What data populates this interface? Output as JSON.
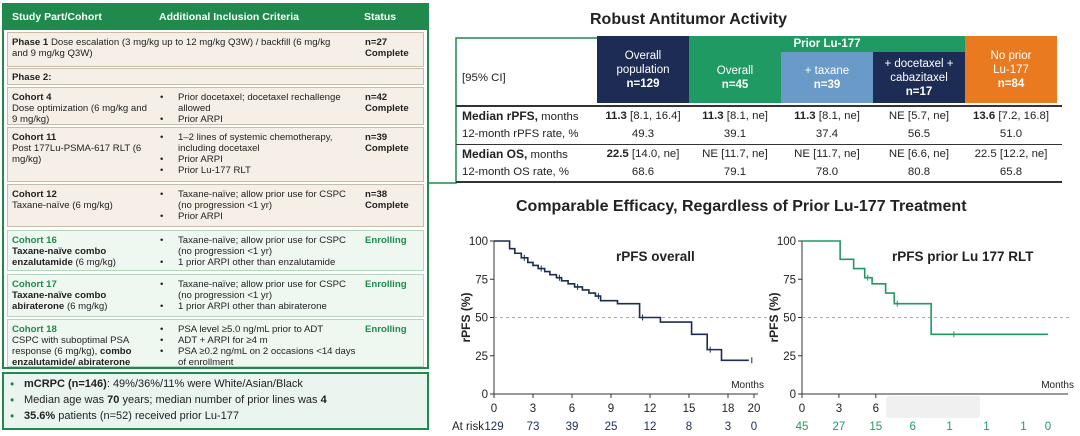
{
  "cohort_table": {
    "headers": {
      "part": "Study Part/Cohort",
      "criteria": "Additional Inclusion Criteria",
      "status": "Status"
    },
    "phase1": {
      "title": "Phase 1",
      "desc": "Dose escalation (3 mg/kg up to 12 mg/kg Q3W) / backfill (6 mg/kg and 9 mg/kg Q3W)",
      "status_n": "n=27",
      "status": "Complete"
    },
    "phase2_label": "Phase 2:",
    "cohorts": [
      {
        "name": "Cohort 4",
        "desc": "Dose optimization (6 mg/kg and 9 mg/kg)",
        "criteria": [
          "Prior docetaxel; docetaxel rechallenge allowed",
          "Prior ARPI"
        ],
        "status_n": "n=42",
        "status": "Complete"
      },
      {
        "name": "Cohort 11",
        "desc": "Post 177Lu-PSMA-617 RLT (6 mg/kg)",
        "criteria": [
          "1–2 lines of systemic chemotherapy, including docetaxel",
          "Prior ARPI",
          "Prior Lu-177 RLT"
        ],
        "status_n": "n=39",
        "status": "Complete"
      },
      {
        "name": "Cohort 12",
        "desc": "Taxane-naïve (6 mg/kg)",
        "criteria": [
          "Taxane-naïve; allow prior use for CSPC (no progression <1 yr)",
          "Prior ARPI"
        ],
        "status_n": "n=38",
        "status": "Complete"
      },
      {
        "name": "Cohort 16",
        "desc_bold": "Taxane-naïve combo enzalutamide",
        "desc": "(6 mg/kg)",
        "criteria": [
          "Taxane-naïve; allow prior use for CSPC (no progression <1 yr)",
          "1 prior ARPI other than enzalutamide"
        ],
        "status": "Enrolling"
      },
      {
        "name": "Cohort 17",
        "desc_bold": "Taxane-naïve combo abiraterone",
        "desc": "(6 mg/kg)",
        "criteria": [
          "Taxane-naïve; allow prior use for CSPC (no progression <1 yr)",
          "1 prior ARPI other than abiraterone"
        ],
        "status": "Enrolling"
      },
      {
        "name": "Cohort 18",
        "desc": "CSPC with suboptimal PSA response (6 mg/kg),",
        "desc_bold": "combo enzalutamide/ abiraterone",
        "criteria": [
          "PSA level ≥5.0 ng/mL prior to ADT",
          "ADT + ARPI for ≥4 m",
          "PSA ≥0.2 ng/mL on 2 occasions <14 days of enrollment"
        ],
        "status": "Enrolling"
      }
    ]
  },
  "summary": {
    "line1_bold": "mCRPC (n=146)",
    "line1": ": 49%/36%/11% were White/Asian/Black",
    "line2_pre": "Median age was ",
    "line2_age": "70",
    "line2_mid": " years; median number of prior lines was ",
    "line2_lines": "4",
    "line3_bold": "35.6%",
    "line3": " patients (n=52) received prior Lu-177"
  },
  "efficacy_table": {
    "title": "Robust Antitumor Activity",
    "ci_label": "[95% CI]",
    "group_header": "Prior Lu-177",
    "columns": [
      {
        "label": "Overall population",
        "n": "n=129",
        "color": "#1c2c55"
      },
      {
        "label": "Overall",
        "n": "n=45",
        "color": "#1f9a63"
      },
      {
        "label": "+ taxane",
        "n": "n=39",
        "color": "#6a9ac8"
      },
      {
        "label": "+ docetaxel + cabazitaxel",
        "n": "n=17",
        "color": "#1c2c55"
      },
      {
        "label": "No prior Lu-177",
        "n": "n=84",
        "color": "#ea7a1f"
      }
    ],
    "rows": [
      {
        "label_bold": "Median rPFS,",
        "label": " months",
        "cells": [
          {
            "bold": "11.3",
            "rest": " [8.1, 16.4]"
          },
          {
            "bold": "11.3",
            "rest": " [8.1, ne]"
          },
          {
            "bold": "11.3",
            "rest": " [8.1, ne]"
          },
          {
            "bold": "",
            "rest": "NE [5.7, ne]"
          },
          {
            "bold": "13.6",
            "rest": " [7.2, 16.8]"
          }
        ]
      },
      {
        "label_bold": "",
        "label": "12-month rPFS rate, %",
        "cells": [
          {
            "bold": "",
            "rest": "49.3"
          },
          {
            "bold": "",
            "rest": "39.1"
          },
          {
            "bold": "",
            "rest": "37.4"
          },
          {
            "bold": "",
            "rest": "56.5"
          },
          {
            "bold": "",
            "rest": "51.0"
          }
        ]
      },
      {
        "label_bold": "Median OS,",
        "label": " months",
        "cells": [
          {
            "bold": "22.5",
            "rest": " [14.0, ne]"
          },
          {
            "bold": "",
            "rest": "NE [11.7, ne]"
          },
          {
            "bold": "",
            "rest": "NE [11.7, ne]"
          },
          {
            "bold": "",
            "rest": "NE [6.6, ne]"
          },
          {
            "bold": "",
            "rest": "22.5 [12.2, ne]"
          }
        ]
      },
      {
        "label_bold": "",
        "label": "12-month OS rate, %",
        "cells": [
          {
            "bold": "",
            "rest": "68.6"
          },
          {
            "bold": "",
            "rest": "79.1"
          },
          {
            "bold": "",
            "rest": "78.0"
          },
          {
            "bold": "",
            "rest": "80.8"
          },
          {
            "bold": "",
            "rest": "65.8"
          }
        ]
      }
    ]
  },
  "charts_title": "Comparable Efficacy, Regardless of Prior Lu-177 Treatment",
  "chart_data": [
    {
      "type": "line",
      "title": "rPFS overall",
      "xlabel": "Months",
      "ylabel": "rPFS (%)",
      "xlim": [
        0,
        20
      ],
      "ylim": [
        0,
        100
      ],
      "xticks": [
        0,
        3,
        6,
        9,
        12,
        15,
        18,
        20
      ],
      "yticks": [
        0,
        25,
        50,
        75,
        100
      ],
      "reference_line_y": 50,
      "series": [
        {
          "name": "rPFS overall",
          "color": "#1c2c55",
          "x": [
            0,
            1.2,
            1.6,
            2.1,
            2.6,
            3.0,
            3.4,
            3.9,
            4.3,
            4.8,
            5.2,
            5.7,
            6.2,
            6.8,
            7.3,
            7.8,
            8.2,
            9.5,
            11.2,
            12.8,
            15.2,
            16.4,
            17.5,
            18.2,
            19.6
          ],
          "y": [
            100,
            95,
            92,
            89,
            86,
            84,
            82,
            80,
            78,
            76,
            74,
            72,
            70,
            68,
            66,
            64,
            61,
            59,
            50,
            47,
            39,
            29,
            22,
            22,
            22
          ]
        }
      ],
      "at_risk_label": "At risk",
      "at_risk_x": [
        0,
        3,
        6,
        9,
        12,
        15,
        18,
        20
      ],
      "at_risk": [
        "129",
        "73",
        "39",
        "25",
        "12",
        "8",
        "3",
        "0"
      ]
    },
    {
      "type": "line",
      "title": "rPFS prior Lu 177 RLT",
      "xlabel": "Months",
      "ylabel": "rPFS (%)",
      "xlim": [
        0,
        20
      ],
      "ylim": [
        0,
        100
      ],
      "xticks": [
        0,
        3,
        6
      ],
      "yticks": [
        0,
        25,
        50,
        75,
        100
      ],
      "reference_line_y": 50,
      "series": [
        {
          "name": "rPFS prior Lu-177",
          "color": "#1f9a63",
          "x": [
            0,
            3.1,
            4.2,
            5.1,
            5.7,
            6.8,
            7.5,
            8.5,
            10.5,
            12.1,
            20
          ],
          "y": [
            100,
            88,
            82,
            76,
            72,
            66,
            59,
            59,
            39,
            39,
            39
          ]
        }
      ],
      "at_risk_label": "",
      "at_risk_x": [
        0,
        3,
        6,
        9,
        12,
        15,
        18,
        20
      ],
      "at_risk": [
        "45",
        "27",
        "15",
        "6",
        "1",
        "1",
        "1",
        "0"
      ]
    }
  ]
}
